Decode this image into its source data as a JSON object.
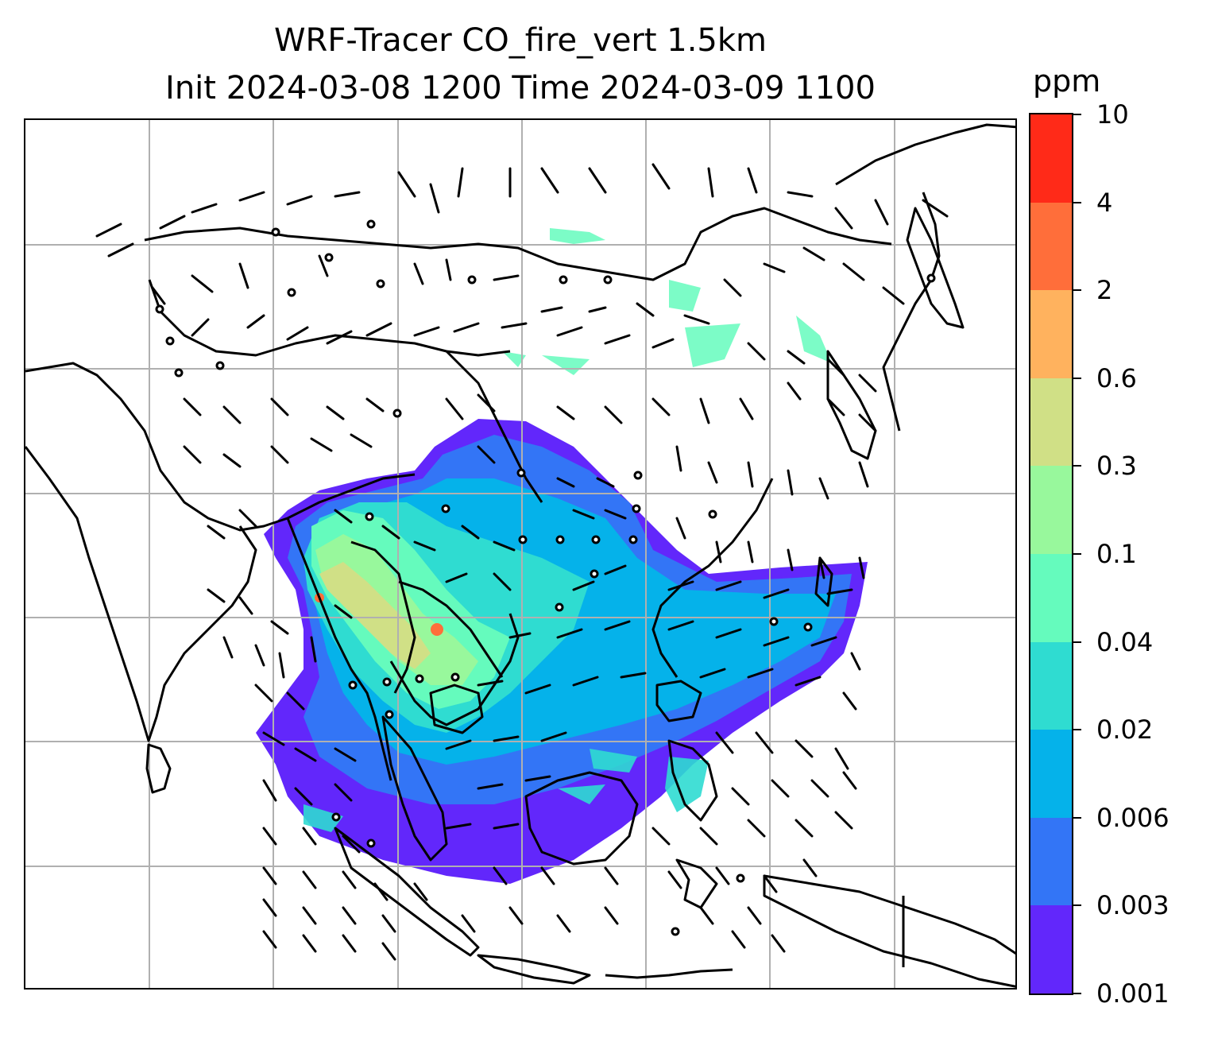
{
  "title": {
    "line1": "WRF-Tracer CO_fire_vert 1.5km",
    "line2": "Init 2024-03-08 1200 Time 2024-03-09 1100"
  },
  "colorbar": {
    "unit": "ppm",
    "levels": [
      "0.001",
      "0.003",
      "0.006",
      "0.02",
      "0.04",
      "0.1",
      "0.3",
      "0.6",
      "2",
      "4",
      "10"
    ],
    "colors": [
      "#6227fb",
      "#3375f6",
      "#05b2ea",
      "#2fdcd1",
      "#65fbbd",
      "#98f89c",
      "#d0e086",
      "#ffb25e",
      "#ff6e3a",
      "#ff2a18"
    ]
  },
  "map": {
    "gridlines": "on",
    "coastline_color": "#000000",
    "grid_color": "#b0b0b0"
  }
}
